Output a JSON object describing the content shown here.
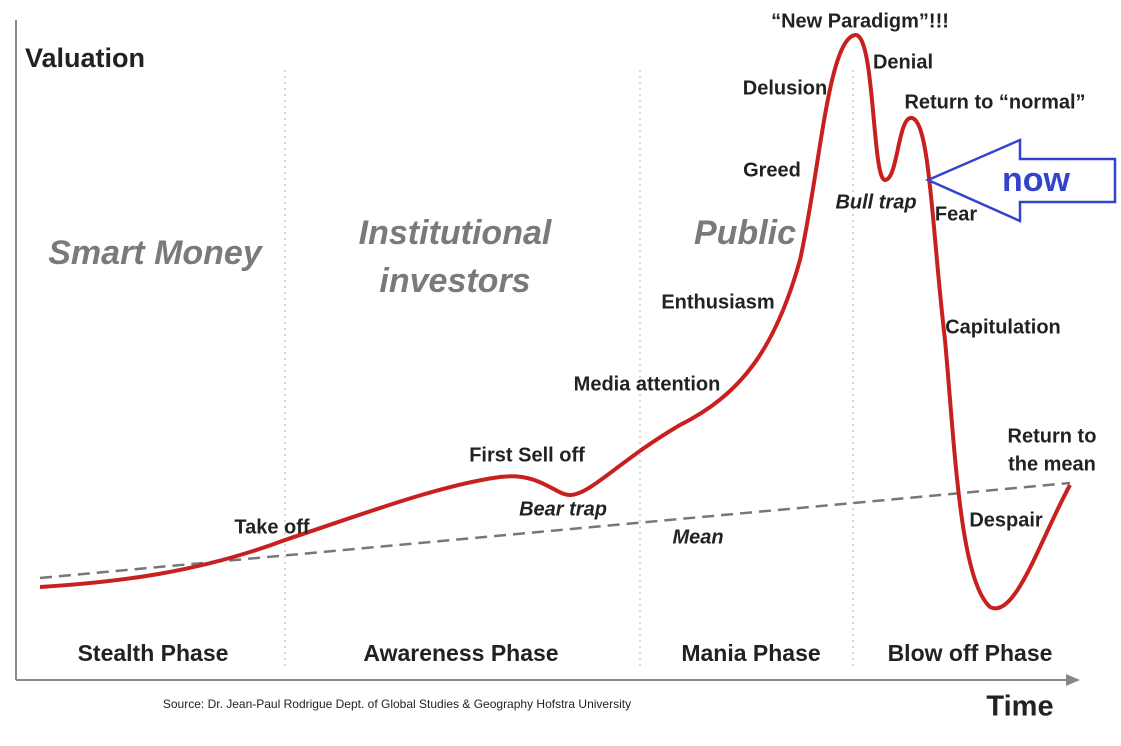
{
  "axes": {
    "y_label": "Valuation",
    "x_label": "Time"
  },
  "participants": [
    {
      "lines": [
        "Smart Money"
      ]
    },
    {
      "lines": [
        "Institutional",
        "investors"
      ]
    },
    {
      "lines": [
        "Public"
      ]
    }
  ],
  "stages": [
    {
      "lines": [
        "Take off"
      ]
    },
    {
      "lines": [
        "First Sell off"
      ]
    },
    {
      "lines": [
        "Bear trap"
      ]
    },
    {
      "lines": [
        "Mean"
      ]
    },
    {
      "lines": [
        "Media attention"
      ]
    },
    {
      "lines": [
        "Enthusiasm"
      ]
    },
    {
      "lines": [
        "Greed"
      ]
    },
    {
      "lines": [
        "Delusion"
      ]
    },
    {
      "lines": [
        "“New Paradigm”!!!"
      ]
    },
    {
      "lines": [
        "Denial"
      ]
    },
    {
      "lines": [
        "Return to “normal”"
      ]
    },
    {
      "lines": [
        "Bull trap"
      ]
    },
    {
      "lines": [
        "Fear"
      ]
    },
    {
      "lines": [
        "Capitulation"
      ]
    },
    {
      "lines": [
        "Return to",
        "the mean"
      ]
    },
    {
      "lines": [
        "Despair"
      ]
    }
  ],
  "phases": [
    "Stealth Phase",
    "Awareness Phase",
    "Mania Phase",
    "Blow off Phase"
  ],
  "annotation": {
    "now": "now"
  },
  "source": "Source: Dr. Jean-Paul Rodrigue Dept. of Global Studies & Geography Hofstra University"
}
